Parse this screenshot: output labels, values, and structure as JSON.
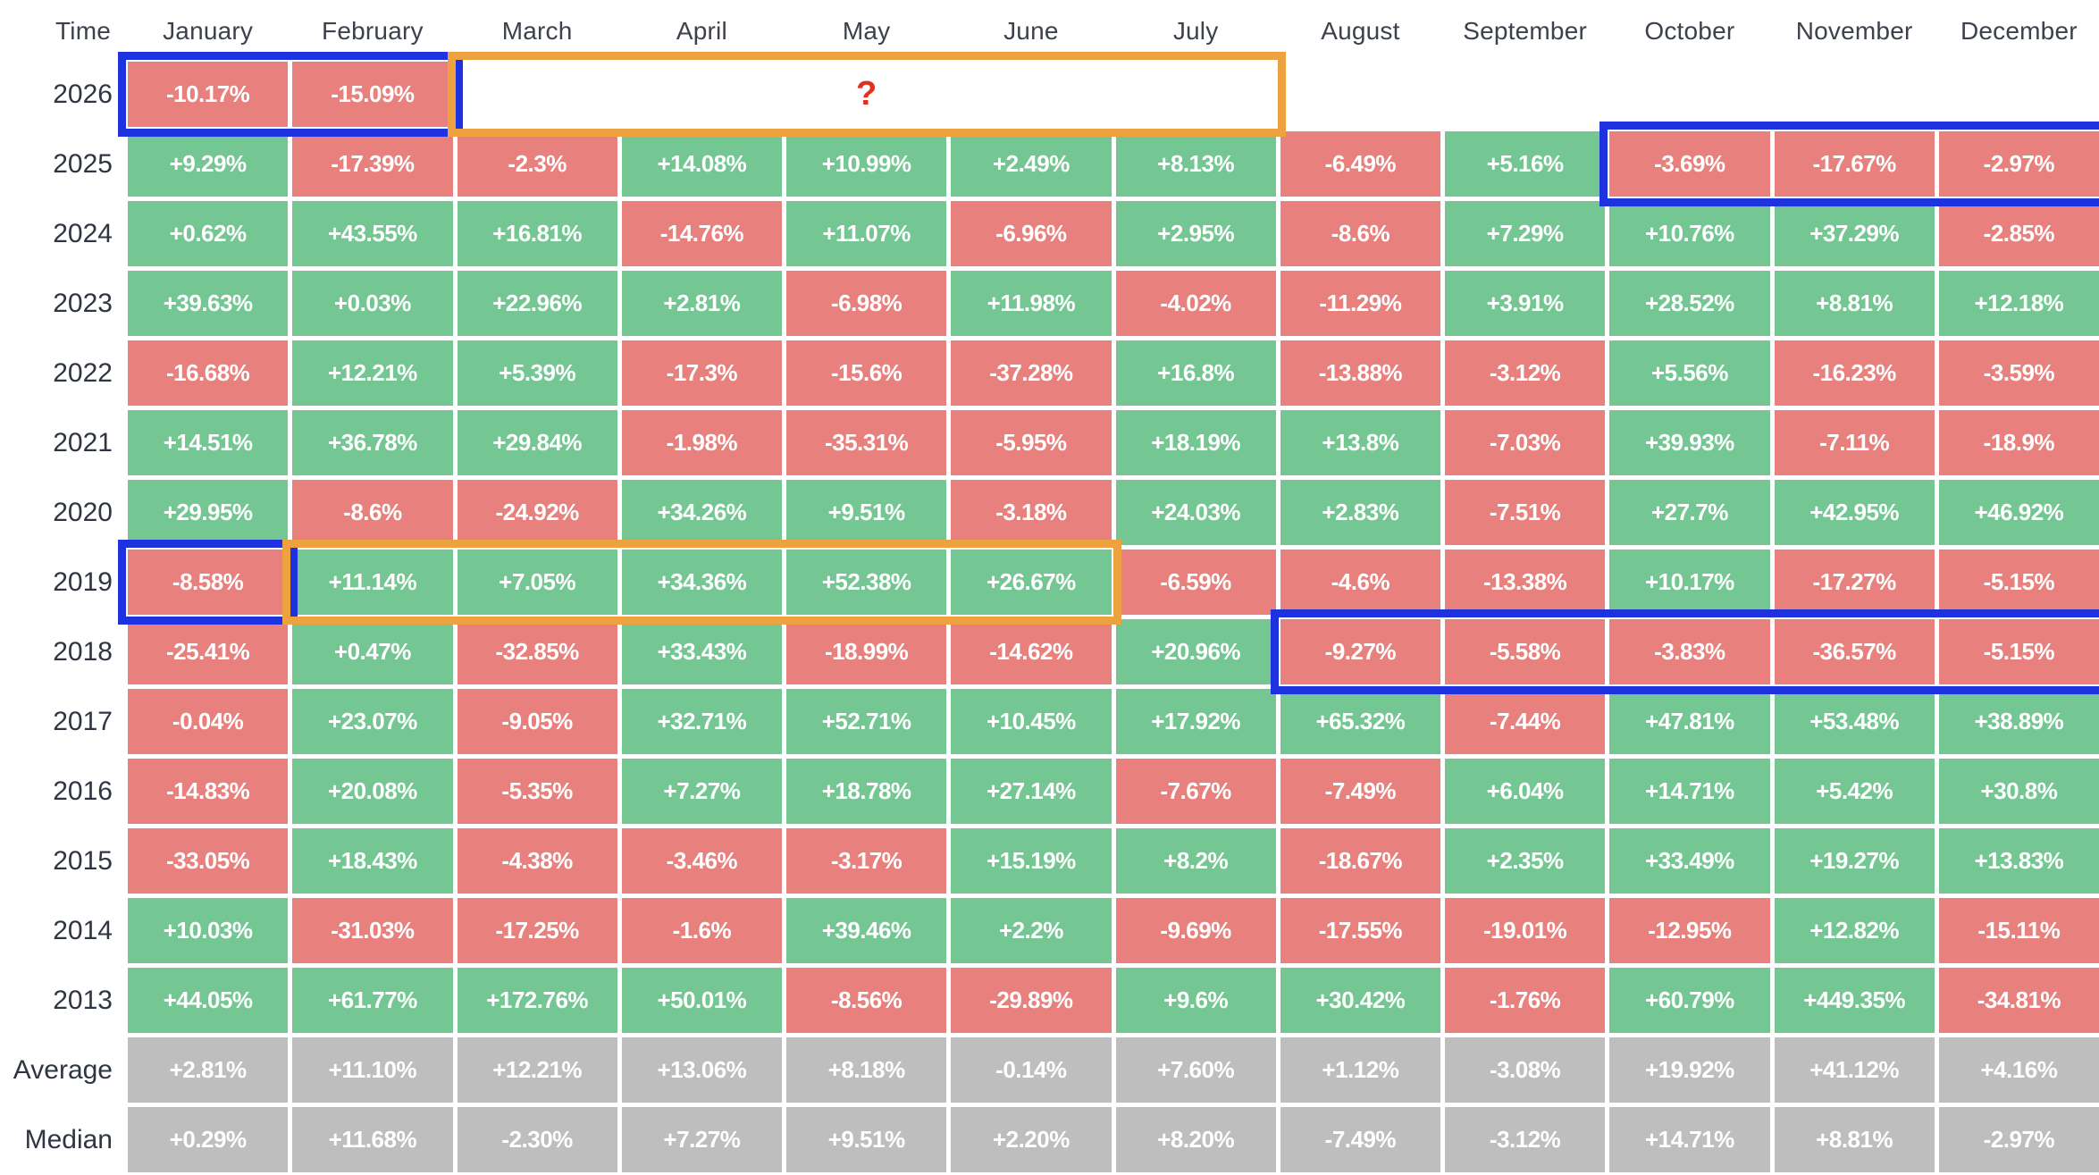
{
  "chart_data": {
    "type": "heatmap",
    "corner_label": "Time",
    "columns": [
      "January",
      "February",
      "March",
      "April",
      "May",
      "June",
      "July",
      "August",
      "September",
      "October",
      "November",
      "December"
    ],
    "rows": [
      {
        "label": "2026",
        "kind": "year",
        "values": [
          "-10.17%",
          "-15.09%",
          null,
          null,
          null,
          null,
          null,
          null,
          null,
          null,
          null,
          null
        ]
      },
      {
        "label": "2025",
        "kind": "year",
        "values": [
          "+9.29%",
          "-17.39%",
          "-2.3%",
          "+14.08%",
          "+10.99%",
          "+2.49%",
          "+8.13%",
          "-6.49%",
          "+5.16%",
          "-3.69%",
          "-17.67%",
          "-2.97%"
        ]
      },
      {
        "label": "2024",
        "kind": "year",
        "values": [
          "+0.62%",
          "+43.55%",
          "+16.81%",
          "-14.76%",
          "+11.07%",
          "-6.96%",
          "+2.95%",
          "-8.6%",
          "+7.29%",
          "+10.76%",
          "+37.29%",
          "-2.85%"
        ]
      },
      {
        "label": "2023",
        "kind": "year",
        "values": [
          "+39.63%",
          "+0.03%",
          "+22.96%",
          "+2.81%",
          "-6.98%",
          "+11.98%",
          "-4.02%",
          "-11.29%",
          "+3.91%",
          "+28.52%",
          "+8.81%",
          "+12.18%"
        ]
      },
      {
        "label": "2022",
        "kind": "year",
        "values": [
          "-16.68%",
          "+12.21%",
          "+5.39%",
          "-17.3%",
          "-15.6%",
          "-37.28%",
          "+16.8%",
          "-13.88%",
          "-3.12%",
          "+5.56%",
          "-16.23%",
          "-3.59%"
        ]
      },
      {
        "label": "2021",
        "kind": "year",
        "values": [
          "+14.51%",
          "+36.78%",
          "+29.84%",
          "-1.98%",
          "-35.31%",
          "-5.95%",
          "+18.19%",
          "+13.8%",
          "-7.03%",
          "+39.93%",
          "-7.11%",
          "-18.9%"
        ]
      },
      {
        "label": "2020",
        "kind": "year",
        "values": [
          "+29.95%",
          "-8.6%",
          "-24.92%",
          "+34.26%",
          "+9.51%",
          "-3.18%",
          "+24.03%",
          "+2.83%",
          "-7.51%",
          "+27.7%",
          "+42.95%",
          "+46.92%"
        ]
      },
      {
        "label": "2019",
        "kind": "year",
        "values": [
          "-8.58%",
          "+11.14%",
          "+7.05%",
          "+34.36%",
          "+52.38%",
          "+26.67%",
          "-6.59%",
          "-4.6%",
          "-13.38%",
          "+10.17%",
          "-17.27%",
          "-5.15%"
        ]
      },
      {
        "label": "2018",
        "kind": "year",
        "values": [
          "-25.41%",
          "+0.47%",
          "-32.85%",
          "+33.43%",
          "-18.99%",
          "-14.62%",
          "+20.96%",
          "-9.27%",
          "-5.58%",
          "-3.83%",
          "-36.57%",
          "-5.15%"
        ]
      },
      {
        "label": "2017",
        "kind": "year",
        "values": [
          "-0.04%",
          "+23.07%",
          "-9.05%",
          "+32.71%",
          "+52.71%",
          "+10.45%",
          "+17.92%",
          "+65.32%",
          "-7.44%",
          "+47.81%",
          "+53.48%",
          "+38.89%"
        ]
      },
      {
        "label": "2016",
        "kind": "year",
        "values": [
          "-14.83%",
          "+20.08%",
          "-5.35%",
          "+7.27%",
          "+18.78%",
          "+27.14%",
          "-7.67%",
          "-7.49%",
          "+6.04%",
          "+14.71%",
          "+5.42%",
          "+30.8%"
        ]
      },
      {
        "label": "2015",
        "kind": "year",
        "values": [
          "-33.05%",
          "+18.43%",
          "-4.38%",
          "-3.46%",
          "-3.17%",
          "+15.19%",
          "+8.2%",
          "-18.67%",
          "+2.35%",
          "+33.49%",
          "+19.27%",
          "+13.83%"
        ]
      },
      {
        "label": "2014",
        "kind": "year",
        "values": [
          "+10.03%",
          "-31.03%",
          "-17.25%",
          "-1.6%",
          "+39.46%",
          "+2.2%",
          "-9.69%",
          "-17.55%",
          "-19.01%",
          "-12.95%",
          "+12.82%",
          "-15.11%"
        ]
      },
      {
        "label": "2013",
        "kind": "year",
        "values": [
          "+44.05%",
          "+61.77%",
          "+172.76%",
          "+50.01%",
          "-8.56%",
          "-29.89%",
          "+9.6%",
          "+30.42%",
          "-1.76%",
          "+60.79%",
          "+449.35%",
          "-34.81%"
        ]
      },
      {
        "label": "Average",
        "kind": "summary",
        "values": [
          "+2.81%",
          "+11.10%",
          "+12.21%",
          "+13.06%",
          "+8.18%",
          "-0.14%",
          "+7.60%",
          "+1.12%",
          "-3.08%",
          "+19.92%",
          "+41.12%",
          "+4.16%"
        ]
      },
      {
        "label": "Median",
        "kind": "summary",
        "values": [
          "+0.29%",
          "+11.68%",
          "-2.30%",
          "+7.27%",
          "+9.51%",
          "+2.20%",
          "+8.20%",
          "-7.49%",
          "-3.12%",
          "+14.71%",
          "+8.81%",
          "-2.97%"
        ]
      }
    ],
    "annotations": [
      {
        "row": 0,
        "col_start": 0,
        "col_end": 1,
        "color_key": "highlight_blue",
        "label": ""
      },
      {
        "row": 0,
        "col_start": 2,
        "col_end": 6,
        "color_key": "highlight_orange",
        "label": "?"
      },
      {
        "row": 1,
        "col_start": 9,
        "col_end": 11,
        "color_key": "highlight_blue",
        "label": ""
      },
      {
        "row": 7,
        "col_start": 0,
        "col_end": 0,
        "color_key": "highlight_blue",
        "label": ""
      },
      {
        "row": 7,
        "col_start": 1,
        "col_end": 5,
        "color_key": "highlight_orange",
        "label": ""
      },
      {
        "row": 8,
        "col_start": 7,
        "col_end": 11,
        "color_key": "highlight_blue",
        "label": ""
      }
    ],
    "colors": {
      "positive": "#74C793",
      "negative": "#E8807D",
      "summary": "#BEBEBE",
      "highlight_blue": "#1E33DF",
      "highlight_orange": "#EEA13F",
      "question_mark": "#E2301F",
      "header_text": "#3C414D",
      "row_label_text": "#2F3542"
    }
  }
}
